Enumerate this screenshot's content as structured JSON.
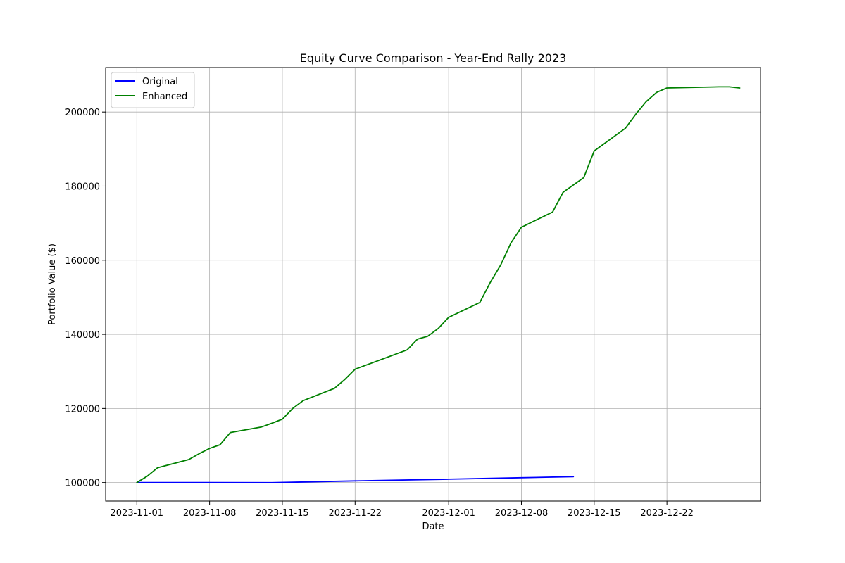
{
  "chart_data": {
    "type": "line",
    "title": "Equity Curve Comparison - Year-End Rally 2023",
    "xlabel": "Date",
    "ylabel": "Portfolio Value ($)",
    "xlim": [
      "2023-10-29",
      "2023-12-31"
    ],
    "ylim": [
      95000,
      212000
    ],
    "x_ticks": [
      "2023-11-01",
      "2023-11-08",
      "2023-11-15",
      "2023-11-22",
      "2023-12-01",
      "2023-12-08",
      "2023-12-15",
      "2023-12-22"
    ],
    "y_ticks": [
      100000,
      120000,
      140000,
      160000,
      180000,
      200000
    ],
    "grid": true,
    "legend_position": "upper-left",
    "series": [
      {
        "name": "Original",
        "color": "#0000ff",
        "points": [
          {
            "x": "2023-11-01",
            "y": 100000
          },
          {
            "x": "2023-11-08",
            "y": 100000
          },
          {
            "x": "2023-11-14",
            "y": 99980
          },
          {
            "x": "2023-11-22",
            "y": 100450
          },
          {
            "x": "2023-12-01",
            "y": 100900
          },
          {
            "x": "2023-12-08",
            "y": 101300
          },
          {
            "x": "2023-12-13",
            "y": 101600
          }
        ]
      },
      {
        "name": "Enhanced",
        "color": "#008000",
        "points": [
          {
            "x": "2023-11-01",
            "y": 100000
          },
          {
            "x": "2023-11-02",
            "y": 101700
          },
          {
            "x": "2023-11-03",
            "y": 104000
          },
          {
            "x": "2023-11-06",
            "y": 106200
          },
          {
            "x": "2023-11-07",
            "y": 107800
          },
          {
            "x": "2023-11-08",
            "y": 109200
          },
          {
            "x": "2023-11-09",
            "y": 110200
          },
          {
            "x": "2023-11-10",
            "y": 113500
          },
          {
            "x": "2023-11-13",
            "y": 115000
          },
          {
            "x": "2023-11-14",
            "y": 116000
          },
          {
            "x": "2023-11-15",
            "y": 117100
          },
          {
            "x": "2023-11-16",
            "y": 120000
          },
          {
            "x": "2023-11-17",
            "y": 122100
          },
          {
            "x": "2023-11-20",
            "y": 125400
          },
          {
            "x": "2023-11-21",
            "y": 127800
          },
          {
            "x": "2023-11-22",
            "y": 130600
          },
          {
            "x": "2023-11-27",
            "y": 135800
          },
          {
            "x": "2023-11-28",
            "y": 138700
          },
          {
            "x": "2023-11-29",
            "y": 139500
          },
          {
            "x": "2023-11-30",
            "y": 141600
          },
          {
            "x": "2023-12-01",
            "y": 144600
          },
          {
            "x": "2023-12-04",
            "y": 148600
          },
          {
            "x": "2023-12-05",
            "y": 154000
          },
          {
            "x": "2023-12-06",
            "y": 158700
          },
          {
            "x": "2023-12-07",
            "y": 164700
          },
          {
            "x": "2023-12-08",
            "y": 168900
          },
          {
            "x": "2023-12-11",
            "y": 173000
          },
          {
            "x": "2023-12-12",
            "y": 178300
          },
          {
            "x": "2023-12-14",
            "y": 182300
          },
          {
            "x": "2023-12-15",
            "y": 189500
          },
          {
            "x": "2023-12-18",
            "y": 195600
          },
          {
            "x": "2023-12-19",
            "y": 199400
          },
          {
            "x": "2023-12-20",
            "y": 202800
          },
          {
            "x": "2023-12-21",
            "y": 205300
          },
          {
            "x": "2023-12-22",
            "y": 206500
          },
          {
            "x": "2023-12-27",
            "y": 206800
          },
          {
            "x": "2023-12-28",
            "y": 206800
          },
          {
            "x": "2023-12-29",
            "y": 206500
          }
        ]
      }
    ]
  }
}
